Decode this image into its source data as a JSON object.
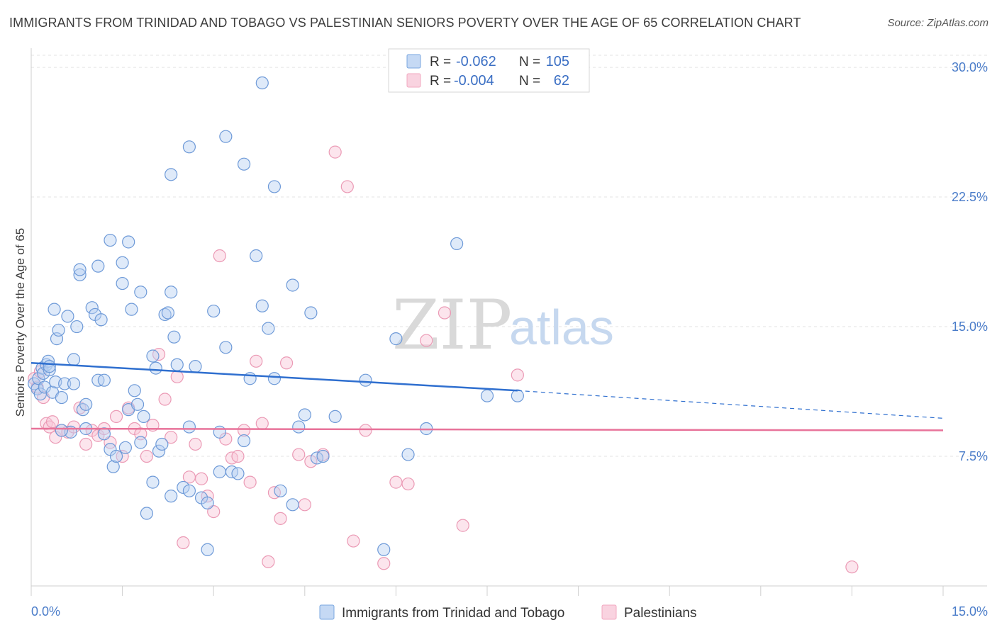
{
  "title": "IMMIGRANTS FROM TRINIDAD AND TOBAGO VS PALESTINIAN SENIORS POVERTY OVER THE AGE OF 65 CORRELATION CHART",
  "source": "Source: ZipAtlas.com",
  "watermark": {
    "zip": "ZIP",
    "atlas": "atlas"
  },
  "colors": {
    "blue": "#7aa7e0",
    "blue_line": "#2f6fcf",
    "pink": "#f2a8c0",
    "pink_line": "#e8739a",
    "accent_text": "#4a7cc9"
  },
  "stats_legend": [
    {
      "series": "blue",
      "r_label": "R =",
      "r_value": "-0.062",
      "n_label": "N =",
      "n_value": "105"
    },
    {
      "series": "pink",
      "r_label": "R =",
      "r_value": "-0.004",
      "n_label": "N =",
      "n_value": "62"
    }
  ],
  "chart_data": {
    "type": "scatter",
    "title": "IMMIGRANTS FROM TRINIDAD AND TOBAGO VS PALESTINIAN SENIORS POVERTY OVER THE AGE OF 65 CORRELATION CHART",
    "xlabel": "",
    "ylabel": "Seniors Poverty Over the Age of 65",
    "xlim": [
      0,
      15
    ],
    "ylim": [
      0,
      30.7
    ],
    "x_tick_labels": [
      "0.0%",
      "15.0%"
    ],
    "y_ticks": [
      7.5,
      15.0,
      22.5,
      30.0
    ],
    "y_tick_labels": [
      "7.5%",
      "15.0%",
      "22.5%",
      "30.0%"
    ],
    "grid": "horizontal dashed",
    "legend_position": "bottom",
    "series": [
      {
        "name": "Immigrants from Trinidad and Tobago",
        "color": "#7aa7e0",
        "trend": {
          "x0": 0.0,
          "y0": 12.9,
          "x1": 8.0,
          "y1": 11.3,
          "dashed_to_x": 15.0,
          "dashed_to_y": 9.7
        },
        "points": [
          [
            0.05,
            11.7
          ],
          [
            0.1,
            11.4
          ],
          [
            0.12,
            12.0
          ],
          [
            0.15,
            11.1
          ],
          [
            0.18,
            12.6
          ],
          [
            0.2,
            12.3
          ],
          [
            0.22,
            11.5
          ],
          [
            0.25,
            12.8
          ],
          [
            0.28,
            13.0
          ],
          [
            0.3,
            12.5
          ],
          [
            0.35,
            11.2
          ],
          [
            0.38,
            16.0
          ],
          [
            0.4,
            11.8
          ],
          [
            0.42,
            14.3
          ],
          [
            0.45,
            14.8
          ],
          [
            0.5,
            10.9
          ],
          [
            0.55,
            11.7
          ],
          [
            0.6,
            15.6
          ],
          [
            0.65,
            8.9
          ],
          [
            0.7,
            11.7
          ],
          [
            0.75,
            15.0
          ],
          [
            0.8,
            18.0
          ],
          [
            0.85,
            10.2
          ],
          [
            0.9,
            9.1
          ],
          [
            1.0,
            16.1
          ],
          [
            1.05,
            15.7
          ],
          [
            1.1,
            11.9
          ],
          [
            1.15,
            15.4
          ],
          [
            1.2,
            11.9
          ],
          [
            1.3,
            7.9
          ],
          [
            1.35,
            6.9
          ],
          [
            1.4,
            7.5
          ],
          [
            1.5,
            17.5
          ],
          [
            1.55,
            8.0
          ],
          [
            1.6,
            10.2
          ],
          [
            1.65,
            16.0
          ],
          [
            1.7,
            11.3
          ],
          [
            1.75,
            10.5
          ],
          [
            1.8,
            17.0
          ],
          [
            1.85,
            9.8
          ],
          [
            2.0,
            13.3
          ],
          [
            2.05,
            12.6
          ],
          [
            2.1,
            7.8
          ],
          [
            2.15,
            8.2
          ],
          [
            2.2,
            15.7
          ],
          [
            2.25,
            15.8
          ],
          [
            2.3,
            17.0
          ],
          [
            2.35,
            14.4
          ],
          [
            2.4,
            12.8
          ],
          [
            2.5,
            5.7
          ],
          [
            2.6,
            9.2
          ],
          [
            2.7,
            12.7
          ],
          [
            2.8,
            5.1
          ],
          [
            2.9,
            4.8
          ],
          [
            3.0,
            15.9
          ],
          [
            3.1,
            8.9
          ],
          [
            3.2,
            13.8
          ],
          [
            3.3,
            6.6
          ],
          [
            3.4,
            6.5
          ],
          [
            3.5,
            8.4
          ],
          [
            3.6,
            12.0
          ],
          [
            3.7,
            19.1
          ],
          [
            3.8,
            16.2
          ],
          [
            3.9,
            14.9
          ],
          [
            4.0,
            12.0
          ],
          [
            4.1,
            5.5
          ],
          [
            4.3,
            4.7
          ],
          [
            4.4,
            9.2
          ],
          [
            4.5,
            9.9
          ],
          [
            4.6,
            15.8
          ],
          [
            4.7,
            7.4
          ],
          [
            4.8,
            7.5
          ],
          [
            5.0,
            9.8
          ],
          [
            5.5,
            11.9
          ],
          [
            5.8,
            2.1
          ],
          [
            6.0,
            14.3
          ],
          [
            6.2,
            7.6
          ],
          [
            6.5,
            9.1
          ],
          [
            7.0,
            19.8
          ],
          [
            7.5,
            11.0
          ],
          [
            8.0,
            11.0
          ],
          [
            1.3,
            20.0
          ],
          [
            1.6,
            19.9
          ],
          [
            0.8,
            18.3
          ],
          [
            1.1,
            18.5
          ],
          [
            1.5,
            18.7
          ],
          [
            2.3,
            23.8
          ],
          [
            2.6,
            25.4
          ],
          [
            3.5,
            24.4
          ],
          [
            3.2,
            26.0
          ],
          [
            4.0,
            23.1
          ],
          [
            3.8,
            29.1
          ],
          [
            1.9,
            4.2
          ],
          [
            2.3,
            5.2
          ],
          [
            2.6,
            5.5
          ],
          [
            2.9,
            2.1
          ],
          [
            3.1,
            6.6
          ],
          [
            4.3,
            17.4
          ],
          [
            2.0,
            6.0
          ],
          [
            1.2,
            8.8
          ],
          [
            0.9,
            10.5
          ],
          [
            0.5,
            9.0
          ],
          [
            1.8,
            8.3
          ],
          [
            0.3,
            12.7
          ],
          [
            0.7,
            13.1
          ]
        ]
      },
      {
        "name": "Palestinians",
        "color": "#f2a8c0",
        "trend": {
          "x0": 0.0,
          "y0": 9.1,
          "x1": 15.0,
          "y1": 9.0
        },
        "points": [
          [
            0.05,
            12.0
          ],
          [
            0.1,
            11.5
          ],
          [
            0.15,
            12.4
          ],
          [
            0.2,
            10.9
          ],
          [
            0.25,
            9.4
          ],
          [
            0.3,
            9.2
          ],
          [
            0.35,
            9.5
          ],
          [
            0.4,
            8.6
          ],
          [
            0.5,
            9.0
          ],
          [
            0.6,
            8.9
          ],
          [
            0.7,
            9.2
          ],
          [
            0.8,
            10.3
          ],
          [
            0.9,
            8.2
          ],
          [
            1.0,
            9.0
          ],
          [
            1.1,
            8.7
          ],
          [
            1.2,
            9.1
          ],
          [
            1.3,
            8.3
          ],
          [
            1.4,
            9.8
          ],
          [
            1.5,
            7.5
          ],
          [
            1.6,
            10.3
          ],
          [
            1.7,
            9.1
          ],
          [
            1.8,
            8.8
          ],
          [
            1.9,
            7.5
          ],
          [
            2.0,
            9.3
          ],
          [
            2.1,
            13.4
          ],
          [
            2.2,
            10.8
          ],
          [
            2.3,
            8.6
          ],
          [
            2.4,
            12.1
          ],
          [
            2.5,
            2.5
          ],
          [
            2.6,
            6.3
          ],
          [
            2.7,
            8.2
          ],
          [
            2.8,
            6.2
          ],
          [
            2.9,
            5.2
          ],
          [
            3.0,
            4.3
          ],
          [
            3.1,
            19.1
          ],
          [
            3.2,
            8.5
          ],
          [
            3.3,
            7.4
          ],
          [
            3.4,
            7.5
          ],
          [
            3.5,
            9.0
          ],
          [
            3.6,
            6.0
          ],
          [
            3.7,
            13.0
          ],
          [
            3.8,
            9.4
          ],
          [
            3.9,
            1.4
          ],
          [
            4.0,
            5.4
          ],
          [
            4.1,
            3.9
          ],
          [
            4.2,
            12.9
          ],
          [
            4.4,
            7.6
          ],
          [
            4.5,
            4.7
          ],
          [
            4.6,
            7.2
          ],
          [
            4.8,
            7.6
          ],
          [
            5.0,
            25.1
          ],
          [
            5.2,
            23.1
          ],
          [
            5.3,
            2.6
          ],
          [
            5.5,
            9.0
          ],
          [
            5.8,
            1.3
          ],
          [
            6.0,
            6.0
          ],
          [
            6.2,
            5.9
          ],
          [
            6.5,
            14.2
          ],
          [
            6.8,
            15.8
          ],
          [
            7.1,
            3.5
          ],
          [
            8.0,
            12.2
          ],
          [
            13.5,
            1.1
          ]
        ]
      }
    ]
  },
  "bottom_legend": [
    {
      "series": "blue",
      "label": "Immigrants from Trinidad and Tobago"
    },
    {
      "series": "pink",
      "label": "Palestinians"
    }
  ]
}
